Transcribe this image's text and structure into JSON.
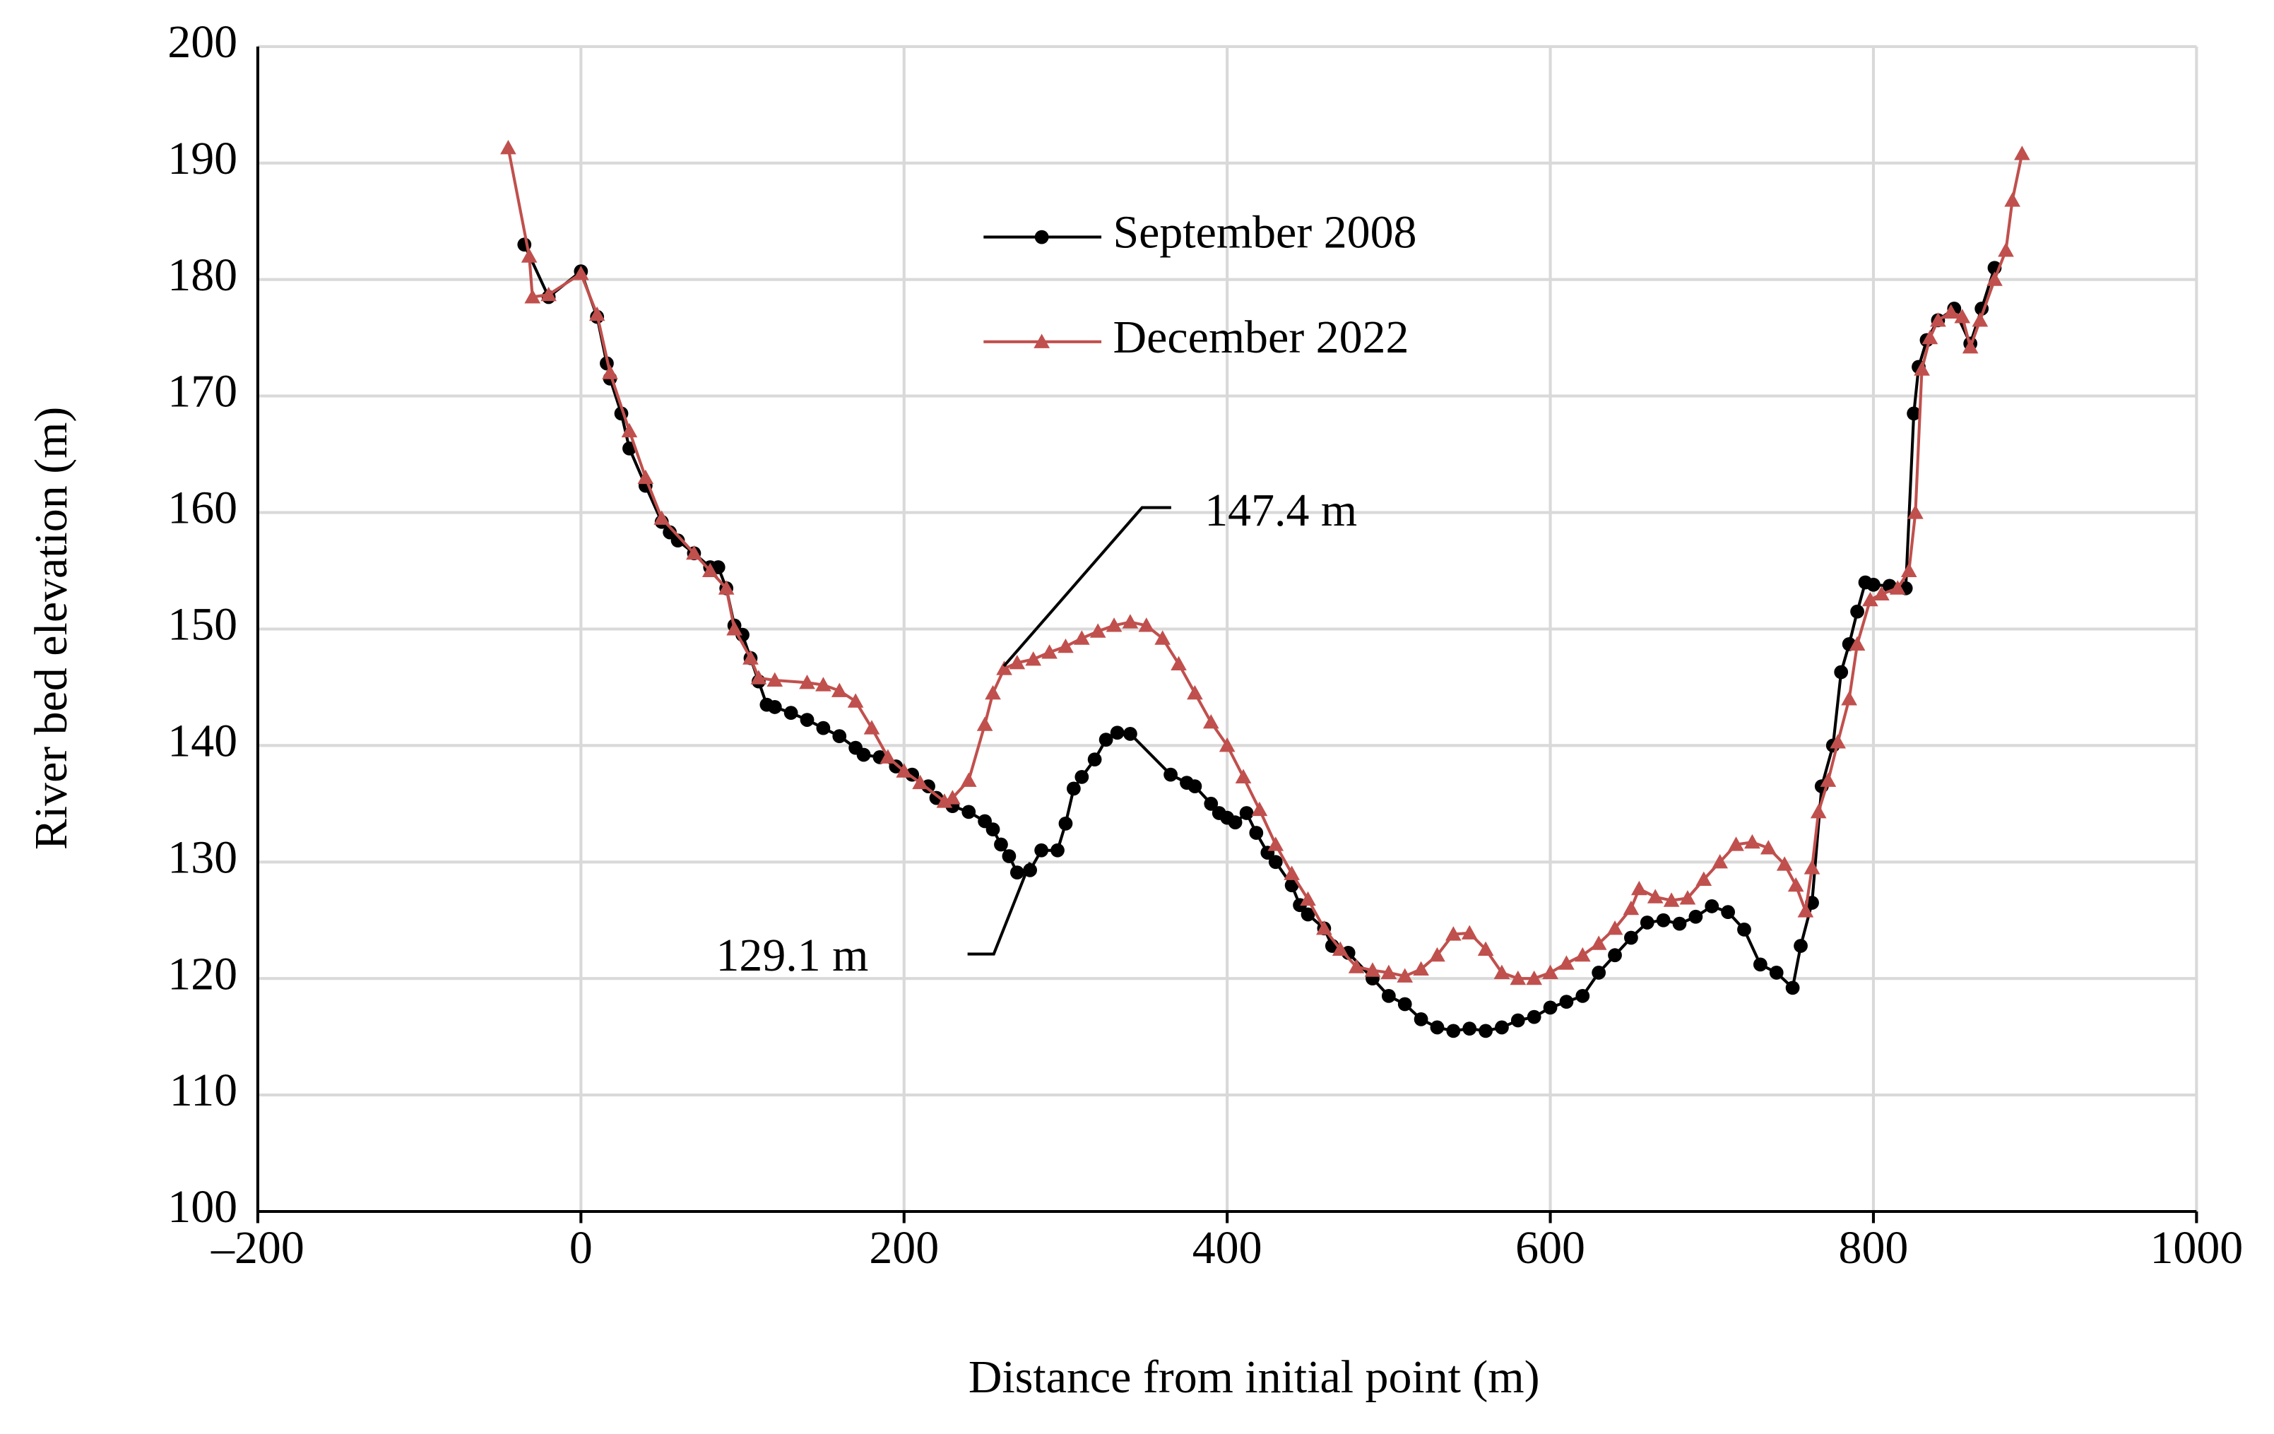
{
  "chart_data": {
    "type": "line",
    "x_label": "Distance from initial point (m)",
    "y_label": "River bed elevation (m)",
    "xlim": [
      -200,
      1000
    ],
    "xticks": [
      {
        "value": -200,
        "label": "–200"
      },
      0,
      200,
      400,
      600,
      800,
      1000
    ],
    "ylim": [
      100,
      200
    ],
    "yticks": [
      100,
      110,
      120,
      130,
      140,
      150,
      160,
      170,
      180,
      190,
      200
    ],
    "grid": true,
    "annotations": [
      "147.4 m",
      "129.1 m"
    ],
    "series": [
      {
        "name": "September 2008",
        "color": "#000000",
        "marker": "circle",
        "x": [
          -35,
          -20,
          0,
          10,
          16,
          18,
          25,
          30,
          40,
          50,
          55,
          60,
          70,
          80,
          85,
          90,
          95,
          100,
          105,
          110,
          115,
          120,
          130,
          140,
          150,
          160,
          170,
          175,
          185,
          195,
          205,
          215,
          220,
          230,
          240,
          250,
          255,
          260,
          265,
          270,
          278,
          285,
          295,
          300,
          305,
          310,
          318,
          325,
          332,
          340,
          365,
          375,
          380,
          390,
          395,
          400,
          405,
          412,
          418,
          425,
          430,
          440,
          445,
          450,
          460,
          465,
          475,
          490,
          500,
          510,
          520,
          530,
          540,
          550,
          560,
          570,
          580,
          590,
          600,
          610,
          620,
          630,
          640,
          650,
          660,
          670,
          680,
          690,
          700,
          710,
          720,
          730,
          740,
          750,
          755,
          762,
          768,
          775,
          780,
          785,
          790,
          795,
          800,
          810,
          820,
          825,
          828,
          833,
          840,
          850,
          860,
          867,
          875
        ],
        "values": [
          183,
          178.5,
          180.7,
          176.8,
          172.8,
          171.5,
          168.5,
          165.5,
          162.3,
          159.2,
          158.3,
          157.6,
          156.5,
          155.3,
          155.3,
          153.5,
          150.3,
          149.5,
          147.5,
          145.5,
          143.5,
          143.3,
          142.8,
          142.2,
          141.5,
          140.8,
          139.8,
          139.2,
          139,
          138.2,
          137.5,
          136.5,
          135.5,
          134.8,
          134.3,
          133.5,
          132.8,
          131.5,
          130.5,
          129.1,
          129.3,
          131,
          131,
          133.3,
          136.3,
          137.3,
          138.8,
          140.5,
          141.1,
          141,
          137.5,
          136.8,
          136.5,
          135,
          134.2,
          133.8,
          133.4,
          134.2,
          132.5,
          130.8,
          130,
          128,
          126.3,
          125.5,
          124.3,
          122.8,
          122.2,
          120,
          118.5,
          117.8,
          116.5,
          115.8,
          115.5,
          115.7,
          115.5,
          115.8,
          116.4,
          116.7,
          117.5,
          118,
          118.5,
          120.5,
          122,
          123.5,
          124.8,
          125,
          124.7,
          125.3,
          126.2,
          125.7,
          124.2,
          121.2,
          120.5,
          119.2,
          122.8,
          126.5,
          136.5,
          140,
          146.3,
          148.7,
          151.5,
          154,
          153.8,
          153.7,
          153.5,
          168.5,
          172.5,
          174.8,
          176.5,
          177.5,
          174.5,
          177.5,
          181
        ]
      },
      {
        "name": "December 2022",
        "color": "#c0504d",
        "marker": "triangle",
        "x": [
          -45,
          -32,
          -30,
          -20,
          0,
          10,
          18,
          30,
          40,
          50,
          70,
          80,
          90,
          95,
          105,
          110,
          120,
          140,
          150,
          160,
          170,
          180,
          190,
          200,
          210,
          225,
          230,
          240,
          250,
          255,
          262,
          270,
          280,
          290,
          300,
          310,
          320,
          330,
          340,
          350,
          360,
          370,
          380,
          390,
          400,
          410,
          420,
          430,
          440,
          450,
          460,
          470,
          480,
          490,
          500,
          510,
          520,
          530,
          540,
          550,
          560,
          570,
          580,
          590,
          600,
          610,
          620,
          630,
          640,
          650,
          655,
          665,
          675,
          685,
          695,
          705,
          715,
          725,
          735,
          745,
          752,
          758,
          762,
          766,
          772,
          778,
          785,
          790,
          798,
          805,
          815,
          822,
          826,
          830,
          835,
          840,
          848,
          855,
          860,
          866,
          875,
          882,
          886,
          892
        ],
        "values": [
          191.3,
          182,
          178.5,
          178.7,
          180.5,
          177,
          172,
          167,
          163,
          159.5,
          156.5,
          155,
          153.5,
          150,
          147.5,
          145.8,
          145.6,
          145.4,
          145.2,
          144.7,
          143.8,
          141.5,
          139,
          137.8,
          136.8,
          135.2,
          135.5,
          137,
          141.8,
          144.5,
          146.6,
          147.1,
          147.4,
          148,
          148.5,
          149.2,
          149.8,
          150.3,
          150.6,
          150.3,
          149.2,
          147,
          144.5,
          142,
          140,
          137.3,
          134.5,
          131.5,
          129,
          126.8,
          124.3,
          122.5,
          121,
          120.7,
          120.5,
          120.2,
          120.8,
          122,
          123.8,
          123.9,
          122.5,
          120.5,
          120,
          120,
          120.5,
          121.3,
          122,
          123,
          124.3,
          126,
          127.7,
          127,
          126.7,
          126.9,
          128.5,
          130,
          131.5,
          131.7,
          131.2,
          129.8,
          128,
          125.8,
          129.5,
          134.3,
          137,
          140.3,
          144,
          148.7,
          152.5,
          153,
          153.5,
          155,
          160,
          172.3,
          175,
          176.5,
          177.2,
          176.8,
          174.2,
          176.5,
          180,
          182.5,
          186.8,
          190.8
        ]
      }
    ]
  }
}
